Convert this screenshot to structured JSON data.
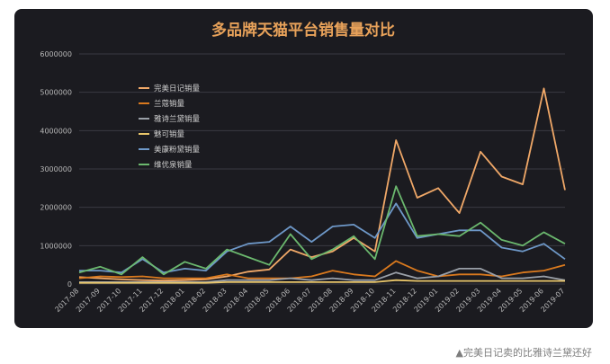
{
  "caption": "▲完美日记卖的比雅诗兰黛还好",
  "chart_data": {
    "type": "line",
    "title": "多品牌天猫平台销售量对比",
    "xlabel": "",
    "ylabel": "",
    "ylim": [
      0,
      6000000
    ],
    "yticks": [
      0,
      1000000,
      2000000,
      3000000,
      4000000,
      5000000,
      6000000
    ],
    "grid": true,
    "legend_position": "top-left",
    "colors": {
      "title": "#e8a25a",
      "axis_text": "#b8b8b8",
      "grid": "#3a3a42"
    },
    "categories": [
      "2017-08",
      "2017-09",
      "2017-10",
      "2017-11",
      "2017-12",
      "2018-01",
      "2018-02",
      "2018-03",
      "2018-04",
      "2018-05",
      "2018-06",
      "2018-07",
      "2018-08",
      "2018-09",
      "2018-10",
      "2018-11",
      "2018-12",
      "2019-01",
      "2019-02",
      "2019-03",
      "2019-04",
      "2019-05",
      "2019-06",
      "2019-07"
    ],
    "x_tick_labels": [
      "2017-08",
      "2017-09",
      "2017-10",
      "2017-11",
      "2017-12",
      "2018-01",
      "2018-02",
      "2018-03",
      "2018-04",
      "2018-05",
      "2018-06",
      "2018-07",
      "2018-08",
      "2018-09",
      "2018-10",
      "2018-11",
      "2018-12",
      "2019-01",
      "2019-02",
      "2019-03",
      "2019-04",
      "2019-05",
      "2019-06",
      "2019-07"
    ],
    "series": [
      {
        "name": "完美日记销量",
        "color": "#f0a868",
        "values": [
          180000,
          150000,
          120000,
          100000,
          90000,
          100000,
          120000,
          200000,
          320000,
          380000,
          900000,
          700000,
          850000,
          1200000,
          850000,
          3750000,
          2250000,
          2500000,
          1850000,
          3450000,
          2800000,
          2600000,
          5100000,
          2450000
        ]
      },
      {
        "name": "兰蔻销量",
        "color": "#d9791e",
        "values": [
          150000,
          200000,
          180000,
          200000,
          150000,
          150000,
          150000,
          250000,
          150000,
          150000,
          150000,
          200000,
          350000,
          250000,
          200000,
          600000,
          350000,
          200000,
          250000,
          250000,
          200000,
          300000,
          350000,
          500000
        ]
      },
      {
        "name": "雅诗兰黛销量",
        "color": "#9aa0a8",
        "values": [
          50000,
          50000,
          50000,
          50000,
          50000,
          50000,
          50000,
          100000,
          100000,
          100000,
          150000,
          100000,
          150000,
          100000,
          100000,
          300000,
          150000,
          200000,
          400000,
          400000,
          150000,
          150000,
          200000,
          100000
        ]
      },
      {
        "name": "魅可销量",
        "color": "#e9c66a",
        "values": [
          30000,
          30000,
          30000,
          30000,
          30000,
          30000,
          30000,
          50000,
          50000,
          50000,
          50000,
          50000,
          50000,
          50000,
          50000,
          100000,
          80000,
          80000,
          80000,
          80000,
          80000,
          80000,
          80000,
          80000
        ]
      },
      {
        "name": "美康粉黛销量",
        "color": "#6e98c8",
        "values": [
          350000,
          350000,
          300000,
          650000,
          300000,
          400000,
          350000,
          850000,
          1050000,
          1100000,
          1500000,
          1100000,
          1500000,
          1550000,
          1200000,
          2100000,
          1200000,
          1300000,
          1400000,
          1400000,
          950000,
          850000,
          1050000,
          650000
        ]
      },
      {
        "name": "维优泉销量",
        "color": "#6bb86e",
        "values": [
          300000,
          450000,
          250000,
          700000,
          250000,
          580000,
          400000,
          900000,
          700000,
          500000,
          1300000,
          650000,
          900000,
          1250000,
          650000,
          2550000,
          1250000,
          1300000,
          1250000,
          1600000,
          1150000,
          1000000,
          1350000,
          1050000
        ]
      }
    ]
  }
}
